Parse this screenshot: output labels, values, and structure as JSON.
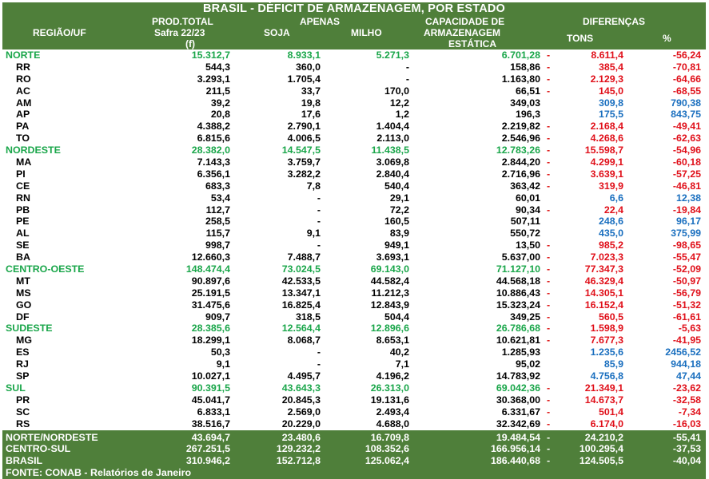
{
  "title": "BRASIL - DÉFICIT DE ARMAZENAGEM, POR ESTADO",
  "headers": {
    "regiao": "REGIÃO/UF",
    "prod_line1": "PROD.TOTAL",
    "prod_line2": "Safra 22/23",
    "prod_line3": "(f)",
    "apenas": "APENAS",
    "soja": "SOJA",
    "milho": "MILHO",
    "cap_line1": "CAPACIDADE DE",
    "cap_line2": "ARMAZENAGEM",
    "cap_line3": "ESTÁTICA",
    "diferencas": "DIFERENÇAS",
    "tons": "TONS",
    "pct": "%"
  },
  "rows": [
    {
      "type": "region",
      "name": "NORTE",
      "prod": "15.312,7",
      "soja": "8.933,1",
      "milho": "5.271,3",
      "cap": "6.701,28",
      "dash": "-",
      "tons": "8.611,4",
      "pct": "-56,24",
      "sign": "neg"
    },
    {
      "type": "state",
      "name": "RR",
      "prod": "544,3",
      "soja": "360,0",
      "milho": "-",
      "cap": "158,86",
      "dash": "-",
      "tons": "385,4",
      "pct": "-70,81",
      "sign": "neg"
    },
    {
      "type": "state",
      "name": "RO",
      "prod": "3.293,1",
      "soja": "1.705,4",
      "milho": "-",
      "cap": "1.163,80",
      "dash": "-",
      "tons": "2.129,3",
      "pct": "-64,66",
      "sign": "neg"
    },
    {
      "type": "state",
      "name": "AC",
      "prod": "211,5",
      "soja": "33,7",
      "milho": "170,0",
      "cap": "66,51",
      "dash": "-",
      "tons": "145,0",
      "pct": "-68,55",
      "sign": "neg"
    },
    {
      "type": "state",
      "name": "AM",
      "prod": "39,2",
      "soja": "19,8",
      "milho": "12,2",
      "cap": "349,03",
      "dash": "",
      "tons": "309,8",
      "pct": "790,38",
      "sign": "pos"
    },
    {
      "type": "state",
      "name": "AP",
      "prod": "20,8",
      "soja": "17,6",
      "milho": "1,2",
      "cap": "196,3",
      "dash": "",
      "tons": "175,5",
      "pct": "843,75",
      "sign": "pos"
    },
    {
      "type": "state",
      "name": "PA",
      "prod": "4.388,2",
      "soja": "2.790,1",
      "milho": "1.404,4",
      "cap": "2.219,82",
      "dash": "-",
      "tons": "2.168,4",
      "pct": "-49,41",
      "sign": "neg"
    },
    {
      "type": "state",
      "name": "TO",
      "prod": "6.815,6",
      "soja": "4.006,5",
      "milho": "2.113,0",
      "cap": "2.546,96",
      "dash": "-",
      "tons": "4.268,6",
      "pct": "-62,63",
      "sign": "neg"
    },
    {
      "type": "region",
      "name": "NORDESTE",
      "prod": "28.382,0",
      "soja": "14.547,5",
      "milho": "11.438,5",
      "cap": "12.783,26",
      "dash": "-",
      "tons": "15.598,7",
      "pct": "-54,96",
      "sign": "neg"
    },
    {
      "type": "state",
      "name": "MA",
      "prod": "7.143,3",
      "soja": "3.759,7",
      "milho": "3.069,8",
      "cap": "2.844,20",
      "dash": "-",
      "tons": "4.299,1",
      "pct": "-60,18",
      "sign": "neg"
    },
    {
      "type": "state",
      "name": "PI",
      "prod": "6.356,1",
      "soja": "3.282,2",
      "milho": "2.840,4",
      "cap": "2.716,96",
      "dash": "-",
      "tons": "3.639,1",
      "pct": "-57,25",
      "sign": "neg"
    },
    {
      "type": "state",
      "name": "CE",
      "prod": "683,3",
      "soja": "7,8",
      "milho": "540,4",
      "cap": "363,42",
      "dash": "-",
      "tons": "319,9",
      "pct": "-46,81",
      "sign": "neg"
    },
    {
      "type": "state",
      "name": "RN",
      "prod": "53,4",
      "soja": "-",
      "milho": "29,1",
      "cap": "60,01",
      "dash": "",
      "tons": "6,6",
      "pct": "12,38",
      "sign": "pos"
    },
    {
      "type": "state",
      "name": "PB",
      "prod": "112,7",
      "soja": "-",
      "milho": "72,2",
      "cap": "90,34",
      "dash": "-",
      "tons": "22,4",
      "pct": "-19,84",
      "sign": "neg"
    },
    {
      "type": "state",
      "name": "PE",
      "prod": "258,5",
      "soja": "-",
      "milho": "160,5",
      "cap": "507,11",
      "dash": "",
      "tons": "248,6",
      "pct": "96,17",
      "sign": "pos"
    },
    {
      "type": "state",
      "name": "AL",
      "prod": "115,7",
      "soja": "9,1",
      "milho": "83,9",
      "cap": "550,72",
      "dash": "",
      "tons": "435,0",
      "pct": "375,99",
      "sign": "pos"
    },
    {
      "type": "state",
      "name": "SE",
      "prod": "998,7",
      "soja": "-",
      "milho": "949,1",
      "cap": "13,50",
      "dash": "-",
      "tons": "985,2",
      "pct": "-98,65",
      "sign": "neg"
    },
    {
      "type": "state",
      "name": "BA",
      "prod": "12.660,3",
      "soja": "7.488,7",
      "milho": "3.693,1",
      "cap": "5.637,00",
      "dash": "-",
      "tons": "7.023,3",
      "pct": "-55,47",
      "sign": "neg"
    },
    {
      "type": "region",
      "name": "CENTRO-OESTE",
      "prod": "148.474,4",
      "soja": "73.024,5",
      "milho": "69.143,0",
      "cap": "71.127,10",
      "dash": "-",
      "tons": "77.347,3",
      "pct": "-52,09",
      "sign": "neg"
    },
    {
      "type": "state",
      "name": "MT",
      "prod": "90.897,6",
      "soja": "42.533,5",
      "milho": "44.582,4",
      "cap": "44.568,18",
      "dash": "-",
      "tons": "46.329,4",
      "pct": "-50,97",
      "sign": "neg"
    },
    {
      "type": "state",
      "name": "MS",
      "prod": "25.191,5",
      "soja": "13.347,1",
      "milho": "11.212,3",
      "cap": "10.886,43",
      "dash": "-",
      "tons": "14.305,1",
      "pct": "-56,79",
      "sign": "neg"
    },
    {
      "type": "state",
      "name": "GO",
      "prod": "31.475,6",
      "soja": "16.825,4",
      "milho": "12.843,9",
      "cap": "15.323,24",
      "dash": "-",
      "tons": "16.152,4",
      "pct": "-51,32",
      "sign": "neg"
    },
    {
      "type": "state",
      "name": "DF",
      "prod": "909,7",
      "soja": "318,5",
      "milho": "504,4",
      "cap": "349,25",
      "dash": "-",
      "tons": "560,5",
      "pct": "-61,61",
      "sign": "neg"
    },
    {
      "type": "region",
      "name": "SUDESTE",
      "prod": "28.385,6",
      "soja": "12.564,4",
      "milho": "12.896,6",
      "cap": "26.786,68",
      "dash": "-",
      "tons": "1.598,9",
      "pct": "-5,63",
      "sign": "neg"
    },
    {
      "type": "state",
      "name": "MG",
      "prod": "18.299,1",
      "soja": "8.068,7",
      "milho": "8.653,1",
      "cap": "10.621,81",
      "dash": "-",
      "tons": "7.677,3",
      "pct": "-41,95",
      "sign": "neg"
    },
    {
      "type": "state",
      "name": "ES",
      "prod": "50,3",
      "soja": "-",
      "milho": "40,2",
      "cap": "1.285,93",
      "dash": "",
      "tons": "1.235,6",
      "pct": "2456,52",
      "sign": "pos"
    },
    {
      "type": "state",
      "name": "RJ",
      "prod": "9,1",
      "soja": "-",
      "milho": "7,1",
      "cap": "95,02",
      "dash": "",
      "tons": "85,9",
      "pct": "944,18",
      "sign": "pos"
    },
    {
      "type": "state",
      "name": "SP",
      "prod": "10.027,1",
      "soja": "4.495,7",
      "milho": "4.196,2",
      "cap": "14.783,92",
      "dash": "",
      "tons": "4.756,8",
      "pct": "47,44",
      "sign": "pos"
    },
    {
      "type": "region",
      "name": "SUL",
      "prod": "90.391,5",
      "soja": "43.643,3",
      "milho": "26.313,0",
      "cap": "69.042,36",
      "dash": "-",
      "tons": "21.349,1",
      "pct": "-23,62",
      "sign": "neg"
    },
    {
      "type": "state",
      "name": "PR",
      "prod": "45.041,7",
      "soja": "20.845,3",
      "milho": "19.131,6",
      "cap": "30.368,00",
      "dash": "-",
      "tons": "14.673,7",
      "pct": "-32,58",
      "sign": "neg"
    },
    {
      "type": "state",
      "name": "SC",
      "prod": "6.833,1",
      "soja": "2.569,0",
      "milho": "2.493,4",
      "cap": "6.331,67",
      "dash": "-",
      "tons": "501,4",
      "pct": "-7,34",
      "sign": "neg"
    },
    {
      "type": "state",
      "name": "RS",
      "prod": "38.516,7",
      "soja": "20.229,0",
      "milho": "4.688,0",
      "cap": "32.342,69",
      "dash": "-",
      "tons": "6.174,0",
      "pct": "-16,03",
      "sign": "neg"
    }
  ],
  "totals": [
    {
      "name": "NORTE/NORDESTE",
      "prod": "43.694,7",
      "soja": "23.480,6",
      "milho": "16.709,8",
      "cap": "19.484,54",
      "dash": "-",
      "tons": "24.210,2",
      "pct": "-55,41"
    },
    {
      "name": "CENTRO-SUL",
      "prod": "267.251,5",
      "soja": "129.232,2",
      "milho": "108.352,6",
      "cap": "166.956,14",
      "dash": "-",
      "tons": "100.295,4",
      "pct": "-37,53"
    },
    {
      "name": "BRASIL",
      "prod": "310.946,2",
      "soja": "152.712,8",
      "milho": "125.062,4",
      "cap": "186.440,68",
      "dash": "-",
      "tons": "124.505,5",
      "pct": "-40,04"
    }
  ],
  "footer": "FONTE: CONAB - Relatórios de Janeiro",
  "colors": {
    "header_green": "#4f7f3a",
    "region_green": "#1aa64a",
    "negative_red": "#e0101a",
    "positive_blue": "#1a6fbf"
  }
}
